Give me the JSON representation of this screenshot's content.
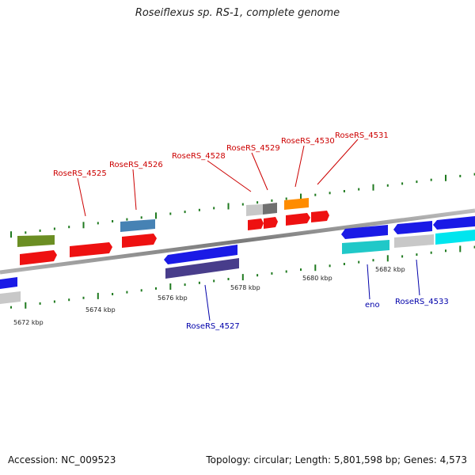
{
  "title": "Roseiflexus sp. RS-1, complete genome",
  "footer": {
    "accession": "Accession: NC_009523",
    "stats": "Topology: circular; Length: 5,801,598 bp; Genes: 4,573"
  },
  "colors": {
    "label_top": "#cc0000",
    "label_bottom": "#0000aa",
    "backbone": "#8a8a8a",
    "ticks": "#1f7a1f"
  },
  "ticks": [
    {
      "label": "5672 kbp"
    },
    {
      "label": "5674 kbp"
    },
    {
      "label": "5676 kbp"
    },
    {
      "label": "5678 kbp"
    },
    {
      "label": "5680 kbp"
    },
    {
      "label": "5682 kbp"
    }
  ],
  "labels_top": [
    {
      "text": "RoseRS_4525"
    },
    {
      "text": "RoseRS_4526"
    },
    {
      "text": "RoseRS_4528"
    },
    {
      "text": "RoseRS_4529"
    },
    {
      "text": "RoseRS_4530"
    },
    {
      "text": "RoseRS_4531"
    }
  ],
  "labels_bottom": [
    {
      "text": "RoseRS_4527"
    },
    {
      "text": "eno"
    },
    {
      "text": "RoseRS_4533"
    }
  ]
}
